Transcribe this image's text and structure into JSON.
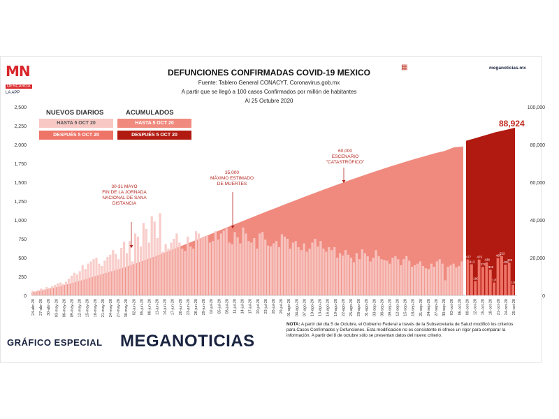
{
  "branding": {
    "logo_text": "MN",
    "logo_tag": "DESCARGA",
    "logo_sub": "LA APP",
    "url": "meganoticias.mx",
    "footer_left": "GRÁFICO ESPECIAL",
    "footer_right": "MEGANOTICIAS"
  },
  "header": {
    "title": "DEFUNCIONES CONFIRMADAS COVID-19 MEXICO",
    "source": "Fuente: Tablero General CONACYT. Coronavirus.gob.mx",
    "basis": "A partir que se llegó a 100 casos Confirmados por millón de habitantes",
    "date": "Al 25 Octubre 2020"
  },
  "legend": {
    "daily_heading": "NUEVOS DIARIOS",
    "cumulative_heading": "ACUMULADOS",
    "daily_before": "HASTA 5 OCT 20",
    "daily_after": "DESPUÉS 5 OCT 20",
    "cum_before": "HASTA 5 OCT 20",
    "cum_after": "DESPUÉS 5 OCT 20"
  },
  "colors": {
    "daily_before": "#f7c8c4",
    "daily_after": "#ef7468",
    "cum_before": "#f08a7f",
    "cum_after": "#b11a10",
    "annotation": "#b3261e",
    "navy": "#1a2340"
  },
  "note": {
    "label": "NOTA:",
    "text": "A partir del día 5 de Octubre, el Gobierno Federal a través de la Subsecretaria de Salud modificó los criterios para Casos Confirmados y Defunciones. Esta modificación no es consistente ni ofrece un rigor para comparar la información. A partir del 8 de octubre sólo se presentan datos del nuevo criterio."
  },
  "chart_data": {
    "type": "bar",
    "left_axis": {
      "ticks": [
        "0",
        "250",
        "500",
        "750",
        "1,000",
        "1,250",
        "1,500",
        "1,750",
        "2,000",
        "2,250",
        "2,500"
      ],
      "ylim": [
        0,
        2500
      ]
    },
    "right_axis": {
      "ticks": [
        "0",
        "20,000",
        "40,000",
        "60,000",
        "80,000",
        "100,000"
      ],
      "ylim": [
        0,
        100000
      ]
    },
    "x_ticks": [
      "24-abr-20",
      "27-abr-20",
      "30-abr-20",
      "03-may-20",
      "06-may-20",
      "09-may-20",
      "12-may-20",
      "15-may-20",
      "18-may-20",
      "21-may-20",
      "24-may-20",
      "27-may-20",
      "30-may-20",
      "02-jun-20",
      "05-jun-20",
      "08-jun-20",
      "11-jun-20",
      "14-jun-20",
      "17-jun-20",
      "20-jun-20",
      "23-jun-20",
      "26-jun-20",
      "29-jun-20",
      "02-jul-20",
      "05-jul-20",
      "08-jul-20",
      "11-jul-20",
      "14-jul-20",
      "17-jul-20",
      "20-jul-20",
      "23-jul-20",
      "26-jul-20",
      "29-jul-20",
      "01-ago-20",
      "04-ago-20",
      "07-ago-20",
      "10-ago-20",
      "13-ago-20",
      "16-ago-20",
      "19-ago-20",
      "22-ago-20",
      "25-ago-20",
      "28-ago-20",
      "31-ago-20",
      "03-sep-20",
      "06-sep-20",
      "09-sep-20",
      "12-sep-20",
      "15-sep-20",
      "18-sep-20",
      "21-sep-20",
      "24-sep-20",
      "27-sep-20",
      "30-sep-20",
      "03-oct-20",
      "06-oct-20",
      "09-oct-20",
      "12-oct-20",
      "15-oct-20",
      "18-oct-20",
      "21-oct-20",
      "24-oct-20",
      "25-oct-20"
    ],
    "series": [
      {
        "name": "NUEVOS DIARIOS HASTA 5 OCT 20",
        "axis": "left",
        "values": [
          60,
          55,
          70,
          90,
          80,
          110,
          100,
          120,
          140,
          160,
          170,
          150,
          180,
          220,
          260,
          300,
          280,
          320,
          400,
          350,
          420,
          450,
          480,
          500,
          420,
          390,
          460,
          510,
          540,
          600,
          550,
          480,
          630,
          710,
          560,
          720,
          450,
          820,
          780,
          650,
          960,
          880,
          700,
          1050,
          980,
          760,
          1090,
          580,
          680,
          620,
          700,
          750,
          820,
          700,
          620,
          590,
          780,
          650,
          620,
          850,
          820,
          760,
          780,
          790,
          700,
          720,
          850,
          740,
          820,
          860,
          890,
          700,
          680,
          840,
          770,
          690,
          900,
          820,
          720,
          700,
          760,
          620,
          820,
          840,
          740,
          660,
          650,
          690,
          720,
          640,
          810,
          780,
          750,
          620,
          700,
          720,
          640,
          600,
          690,
          580,
          620,
          700,
          750,
          650,
          720,
          620,
          580,
          640,
          600,
          640,
          500,
          560,
          530,
          600,
          540,
          500,
          440,
          560,
          480,
          610,
          560,
          520,
          450,
          500,
          600,
          520,
          480,
          470,
          460,
          420,
          500,
          520,
          480,
          400,
          480,
          520,
          460,
          380,
          400,
          420,
          450,
          390,
          360,
          350,
          420,
          380,
          450,
          480,
          420,
          200,
          380,
          400,
          420,
          370,
          390,
          450
        ]
      },
      {
        "name": "NUEVOS DIARIOS DESPUÉS 5 OCT 20",
        "axis": "left",
        "values": [
          477,
          413,
          190,
          475,
          378,
          438,
          342,
          170,
          495,
          522,
          408,
          433,
          140
        ]
      },
      {
        "name": "ACUMULADOS HASTA 5 OCT 20",
        "axis": "right",
        "values": [
          1500,
          2500,
          3600,
          4800,
          6100,
          7500,
          9000,
          10500,
          12000,
          13500,
          15000,
          16800,
          18600,
          20400,
          22300,
          24300,
          26300,
          28300,
          30300,
          32300,
          34400,
          36400,
          38400,
          40400,
          42400,
          44400,
          46300,
          48300,
          50200,
          52100,
          54000,
          55900,
          57700,
          59500,
          61300,
          63000,
          64700,
          66400,
          68000,
          69600,
          71100,
          72600,
          74000,
          75400,
          76600,
          78500,
          79000
        ]
      },
      {
        "name": "ACUMULADOS DESPUÉS 5 OCT 20",
        "axis": "right",
        "values": [
          82000,
          83500,
          85000,
          86500,
          87700,
          88924
        ]
      }
    ],
    "daily_labels": [
      "477",
      "413",
      "190",
      "475",
      "378",
      "438",
      "342",
      "170",
      "495",
      "522",
      "408",
      "433",
      "140"
    ],
    "final_value_label": "88,924",
    "annotations": [
      {
        "text": [
          "30-31 MAYO",
          "FIN DE LA JORNADA",
          "NACIONAL DE SANA",
          "DISTANCIA"
        ],
        "x_date": "30-may-20"
      },
      {
        "text": [
          "35,000",
          "MÁXIMO ESTIMADO",
          "DE MUERTES"
        ],
        "x_date": "05-jul-20"
      },
      {
        "text": [
          "60,000",
          "ESCENARIO",
          "\"CATASTRÓFICO\""
        ],
        "x_date": "21-ago-20"
      }
    ]
  }
}
